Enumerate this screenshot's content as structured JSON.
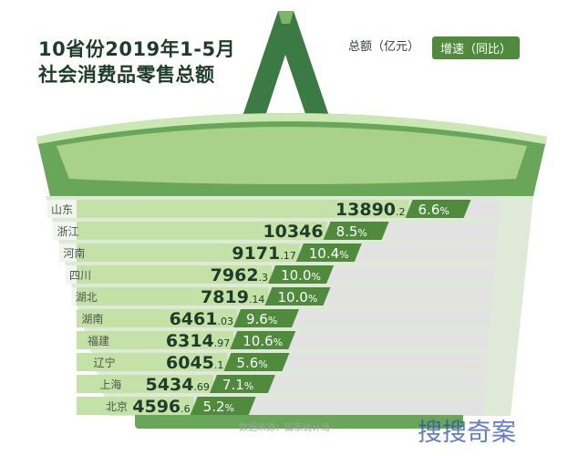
{
  "title_line1": "10省份2019年1-5月",
  "title_line2": "社会消费品零售总额",
  "legend": {
    "total": "总额（亿元）",
    "growth": "增速（同比）"
  },
  "source": "数据来源：国家统计局",
  "watermark": "搜搜奇案",
  "colors": {
    "bar": "#c4e2a7",
    "bar_light": "#e2e2e2",
    "basket": "#6aa65a",
    "handle": "#3c7a45",
    "growth_tag": "#4f8a3d",
    "text": "#1f3b2a"
  },
  "chart_data": {
    "type": "bar",
    "orientation": "horizontal",
    "title": "10省份2019年1-5月社会消费品零售总额",
    "categories": [
      "山东",
      "浙江",
      "河南",
      "四川",
      "湖北",
      "湖南",
      "福建",
      "辽宁",
      "上海",
      "北京"
    ],
    "series": [
      {
        "name": "总额（亿元）",
        "values": [
          13890.2,
          10346,
          9171.17,
          7962.3,
          7819.14,
          6461.03,
          6314.97,
          6045.1,
          5434.69,
          4596.6
        ]
      },
      {
        "name": "增速（同比）",
        "values": [
          "6.6%",
          "8.5%",
          "10.4%",
          "10.0%",
          "10.0%",
          "9.6%",
          "10.6%",
          "5.6%",
          "7.1%",
          "5.2%"
        ]
      }
    ],
    "value_labels": [
      {
        "int": "13890",
        "dec": ".2"
      },
      {
        "int": "10346",
        "dec": ""
      },
      {
        "int": "9171",
        "dec": ".17"
      },
      {
        "int": "7962",
        "dec": ".3"
      },
      {
        "int": "7819",
        "dec": ".14"
      },
      {
        "int": "6461",
        "dec": ".03"
      },
      {
        "int": "6314",
        "dec": ".97"
      },
      {
        "int": "6045",
        "dec": ".1"
      },
      {
        "int": "5434",
        "dec": ".69"
      },
      {
        "int": "4596",
        "dec": ".6"
      }
    ],
    "growth_labels": [
      {
        "int": "6.6",
        "dec": "%"
      },
      {
        "int": "8.5",
        "dec": "%"
      },
      {
        "int": "10.4",
        "dec": "%"
      },
      {
        "int": "10.0",
        "dec": "%"
      },
      {
        "int": "10.0",
        "dec": "%"
      },
      {
        "int": "9.6",
        "dec": "%"
      },
      {
        "int": "10.6",
        "dec": "%"
      },
      {
        "int": "5.6",
        "dec": "%"
      },
      {
        "int": "7.1",
        "dec": "%"
      },
      {
        "int": "5.2",
        "dec": "%"
      }
    ],
    "xlim": [
      0,
      14500
    ]
  }
}
